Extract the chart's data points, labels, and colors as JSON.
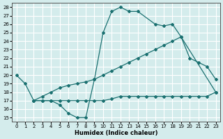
{
  "xlabel": "Humidex (Indice chaleur)",
  "bg_color": "#d4ecec",
  "grid_color": "#ffffff",
  "line_color": "#1a7070",
  "xlim": [
    -0.5,
    23.5
  ],
  "ylim": [
    14.5,
    28.5
  ],
  "xticks": [
    0,
    1,
    2,
    3,
    4,
    5,
    6,
    7,
    8,
    9,
    10,
    11,
    12,
    13,
    14,
    15,
    16,
    17,
    18,
    19,
    20,
    21,
    22,
    23
  ],
  "yticks": [
    15,
    16,
    17,
    18,
    19,
    20,
    21,
    22,
    23,
    24,
    25,
    26,
    27,
    28
  ],
  "curve1_x": [
    0,
    1,
    2,
    3,
    4,
    5,
    6,
    7,
    8,
    9,
    10,
    11,
    12,
    13,
    14,
    16,
    17,
    18,
    19,
    23
  ],
  "curve1_y": [
    20,
    19,
    17,
    17,
    17,
    16.5,
    15.5,
    15,
    15,
    19.5,
    25,
    27.5,
    28,
    27.5,
    27.5,
    26,
    25.8,
    26,
    24.5,
    18
  ],
  "curve2_x": [
    2,
    3,
    4,
    5,
    6,
    7,
    8,
    9,
    10,
    11,
    12,
    13,
    14,
    15,
    16,
    17,
    18,
    19,
    20,
    21,
    22,
    23
  ],
  "curve2_y": [
    17,
    17.5,
    18,
    18.5,
    18.8,
    19,
    19.2,
    19.5,
    20,
    20.5,
    21,
    21.5,
    22,
    22.5,
    23,
    23.5,
    24,
    24.5,
    22,
    21.5,
    21,
    19.5
  ],
  "curve3_x": [
    2,
    3,
    4,
    5,
    6,
    7,
    8,
    9,
    10,
    11,
    12,
    13,
    14,
    15,
    16,
    17,
    18,
    19,
    20,
    21,
    22,
    23
  ],
  "curve3_y": [
    17,
    17,
    17,
    17,
    17,
    17,
    17,
    17,
    17,
    17.2,
    17.5,
    17.5,
    17.5,
    17.5,
    17.5,
    17.5,
    17.5,
    17.5,
    17.5,
    17.5,
    17.5,
    18
  ]
}
